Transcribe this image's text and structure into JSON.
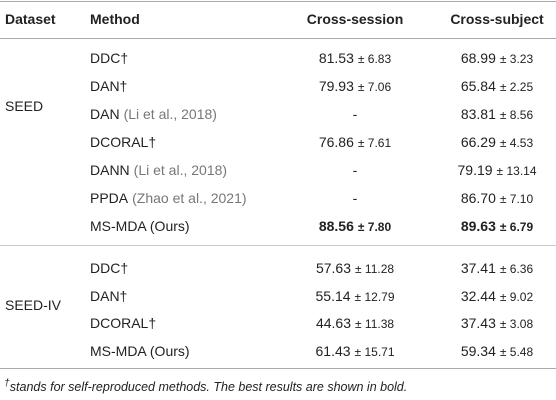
{
  "header": {
    "dataset": "Dataset",
    "method": "Method",
    "session": "Cross-session",
    "subject": "Cross-subject"
  },
  "sections": [
    {
      "dataset": "SEED",
      "rows": [
        {
          "method": "DDC†",
          "session": "81.53",
          "session_sd": "± 6.83",
          "subject": "68.99",
          "subject_sd": "± 3.23"
        },
        {
          "method": "DAN†",
          "session": "79.93",
          "session_sd": "± 7.06",
          "subject": "65.84",
          "subject_sd": "± 2.25"
        },
        {
          "method": "DAN",
          "cite": "(Li et al., 2018)",
          "session": "-",
          "subject": "83.81",
          "subject_sd": "± 8.56"
        },
        {
          "method": "DCORAL†",
          "session": "76.86",
          "session_sd": "± 7.61",
          "subject": "66.29",
          "subject_sd": "± 4.53"
        },
        {
          "method": "DANN",
          "cite": "(Li et al., 2018)",
          "session": "-",
          "subject": "79.19",
          "subject_sd": "± 13.14"
        },
        {
          "method": "PPDA",
          "cite": "(Zhao et al., 2021)",
          "session": "-",
          "subject": "86.70",
          "subject_sd": "± 7.10"
        },
        {
          "method": "MS-MDA (Ours)",
          "session": "88.56",
          "session_sd": "± 7.80",
          "subject": "89.63",
          "subject_sd": "± 6.79",
          "bold": true
        }
      ]
    },
    {
      "dataset": "SEED-IV",
      "rows": [
        {
          "method": "DDC†",
          "session": "57.63",
          "session_sd": "± 11.28",
          "subject": "37.41",
          "subject_sd": "± 6.36"
        },
        {
          "method": "DAN†",
          "session": "55.14",
          "session_sd": "± 12.79",
          "subject": "32.44",
          "subject_sd": "± 9.02"
        },
        {
          "method": "DCORAL†",
          "session": "44.63",
          "session_sd": "± 11.38",
          "subject": "37.43",
          "subject_sd": "± 3.08"
        },
        {
          "method": "MS-MDA (Ours)",
          "session": "61.43",
          "session_sd": "± 15.71",
          "subject": "59.34",
          "subject_sd": "± 5.48"
        }
      ]
    }
  ],
  "footnote": {
    "mark": "†",
    "text": "stands for self-reproduced methods. The best results are shown in bold."
  }
}
